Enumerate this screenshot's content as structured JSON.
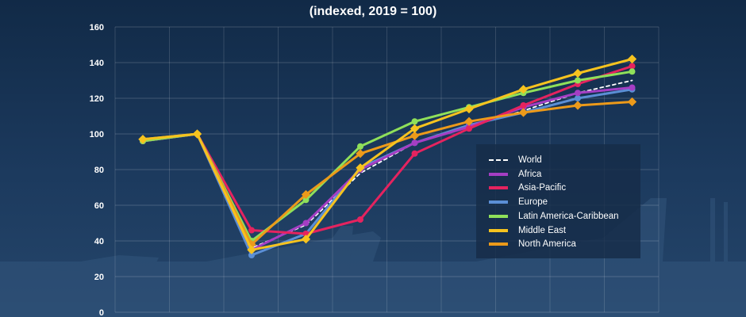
{
  "chart_data": {
    "type": "line",
    "subtitle": "(indexed, 2019 = 100)",
    "ylim": [
      0,
      160
    ],
    "yticks": [
      0,
      20,
      40,
      60,
      80,
      100,
      120,
      140,
      160
    ],
    "grid": true,
    "legend_position": "right",
    "x": [
      0,
      1,
      2,
      3,
      4,
      5,
      6,
      7,
      8,
      9
    ],
    "series": [
      {
        "name": "World",
        "color": "#ffffff",
        "dashed": true,
        "values": [
          96,
          100,
          36,
          49,
          78,
          95,
          104,
          113,
          123,
          130
        ]
      },
      {
        "name": "Africa",
        "color": "#a53ec4",
        "dashed": false,
        "values": [
          96,
          100,
          35,
          50,
          80,
          95,
          104,
          115,
          123,
          126
        ]
      },
      {
        "name": "Asia-Pacific",
        "color": "#e5235f",
        "dashed": false,
        "values": [
          96,
          100,
          46,
          44,
          52,
          89,
          103,
          116,
          128,
          138
        ]
      },
      {
        "name": "Europe",
        "color": "#5b8fd6",
        "dashed": false,
        "values": [
          96,
          100,
          32,
          44,
          81,
          95,
          105,
          112,
          120,
          125
        ]
      },
      {
        "name": "Latin America-Caribbean",
        "color": "#8fe05a",
        "dashed": false,
        "values": [
          96,
          100,
          40,
          63,
          93,
          107,
          115,
          123,
          130,
          135
        ]
      },
      {
        "name": "Middle East",
        "color": "#f6c31f",
        "dashed": false,
        "values": [
          97,
          100,
          35,
          41,
          81,
          103,
          114,
          125,
          134,
          142
        ]
      },
      {
        "name": "North America",
        "color": "#ec9a1a",
        "dashed": false,
        "values": [
          97,
          100,
          38,
          66,
          89,
          99,
          107,
          112,
          116,
          118
        ]
      }
    ]
  }
}
